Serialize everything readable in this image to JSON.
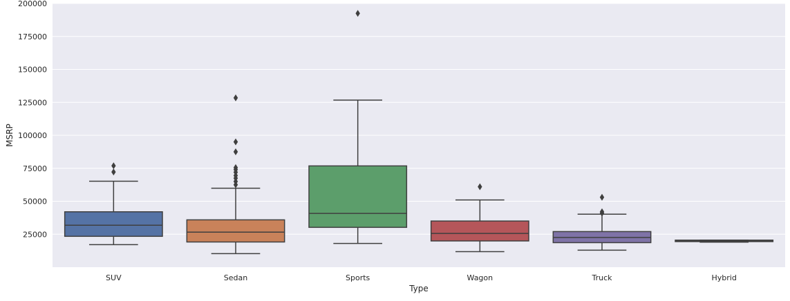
{
  "chart_data": {
    "type": "box",
    "title": "",
    "xlabel": "Type",
    "ylabel": "MSRP",
    "ylim": [
      0,
      200000
    ],
    "yticks": [
      25000,
      50000,
      75000,
      100000,
      125000,
      150000,
      175000,
      200000
    ],
    "grid": true,
    "legend": "none",
    "categories": [
      "SUV",
      "Sedan",
      "Sports",
      "Wagon",
      "Truck",
      "Hybrid"
    ],
    "boxes": [
      {
        "category": "SUV",
        "color": "#4C72B0",
        "whisker_low": 17100,
        "q1": 23400,
        "median": 31800,
        "q3": 42000,
        "whisker_high": 65200,
        "outliers": [
          72200,
          76900
        ]
      },
      {
        "category": "Sedan",
        "color": "#DD8452",
        "whisker_low": 10300,
        "q1": 19100,
        "median": 26600,
        "q3": 35900,
        "whisker_high": 59900,
        "outliers": [
          62500,
          65000,
          67500,
          69500,
          72000,
          74000,
          75500,
          87500,
          95000,
          128400
        ]
      },
      {
        "category": "Sports",
        "color": "#55A868",
        "whisker_low": 18000,
        "q1": 30200,
        "median": 40800,
        "q3": 76800,
        "whisker_high": 126700,
        "outliers": [
          192500
        ]
      },
      {
        "category": "Wagon",
        "color": "#C44E52",
        "whisker_low": 11800,
        "q1": 19900,
        "median": 25600,
        "q3": 35000,
        "whisker_high": 51000,
        "outliers": [
          61000
        ]
      },
      {
        "category": "Truck",
        "color": "#8172B3",
        "whisker_low": 12900,
        "q1": 18600,
        "median": 22500,
        "q3": 27000,
        "whisker_high": 40200,
        "outliers": [
          41000,
          42000,
          53000
        ]
      },
      {
        "category": "Hybrid",
        "color": "#937860",
        "whisker_low": 19000,
        "q1": 19400,
        "median": 20000,
        "q3": 20500,
        "whisker_high": 20500,
        "outliers": []
      }
    ]
  }
}
